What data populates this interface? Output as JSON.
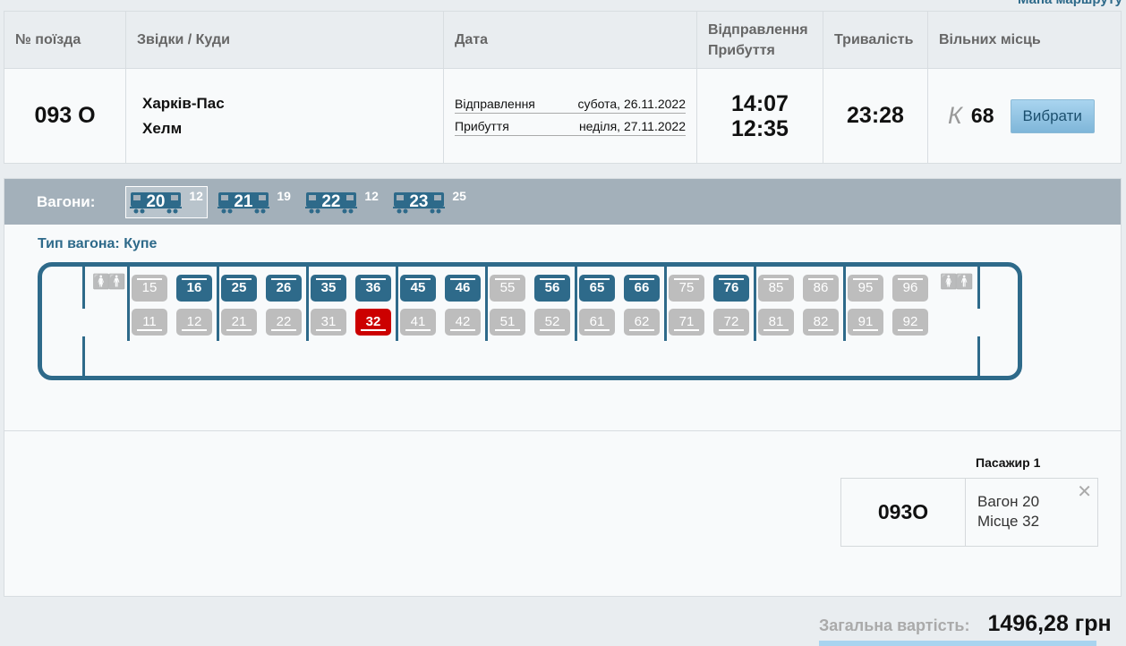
{
  "top_link": "Мапа маршруту",
  "table": {
    "headers": [
      "№ поїзда",
      "Звідки / Куди",
      "Дата",
      "Відправлення Прибуття",
      "Тривалість",
      "Вільних місць"
    ],
    "row": {
      "train": "093 О",
      "from": "Харків-Пас",
      "to": "Хелм",
      "dep_label": "Відправлення",
      "dep_date": "субота, 26.11.2022",
      "arr_label": "Прибуття",
      "arr_date": "неділя, 27.11.2022",
      "dep_time": "14:07",
      "arr_time": "12:35",
      "duration": "23:28",
      "class": "К",
      "free": "68",
      "select": "Вибрати"
    }
  },
  "wagons_label": "Вагони:",
  "wagons": [
    {
      "num": "20",
      "free": "12",
      "selected": true
    },
    {
      "num": "21",
      "free": "19"
    },
    {
      "num": "22",
      "free": "12"
    },
    {
      "num": "23",
      "free": "25"
    }
  ],
  "car_type": "Тип вагона: Купе",
  "compartments": [
    [
      "15",
      "16",
      "11",
      "12"
    ],
    [
      "25",
      "26",
      "21",
      "22"
    ],
    [
      "35",
      "36",
      "31",
      "32"
    ],
    [
      "45",
      "46",
      "41",
      "42"
    ],
    [
      "55",
      "56",
      "51",
      "52"
    ],
    [
      "65",
      "66",
      "61",
      "62"
    ],
    [
      "75",
      "76",
      "71",
      "72"
    ],
    [
      "85",
      "86",
      "81",
      "82"
    ],
    [
      "95",
      "96",
      "91",
      "92"
    ]
  ],
  "free_seats": [
    "16",
    "25",
    "26",
    "35",
    "36",
    "45",
    "46",
    "56",
    "65",
    "66",
    "76"
  ],
  "selected_seat": "32",
  "colors": {
    "free": "#2e6a8a",
    "busy": "#bdbdbd",
    "selected": "#cc0000"
  },
  "passenger": {
    "title": "Пасажир 1",
    "train": "093О",
    "wagon": "Вагон 20",
    "seat": "Місце 32"
  },
  "total": {
    "label": "Загальна вартість:",
    "value": "1496,28 грн"
  }
}
